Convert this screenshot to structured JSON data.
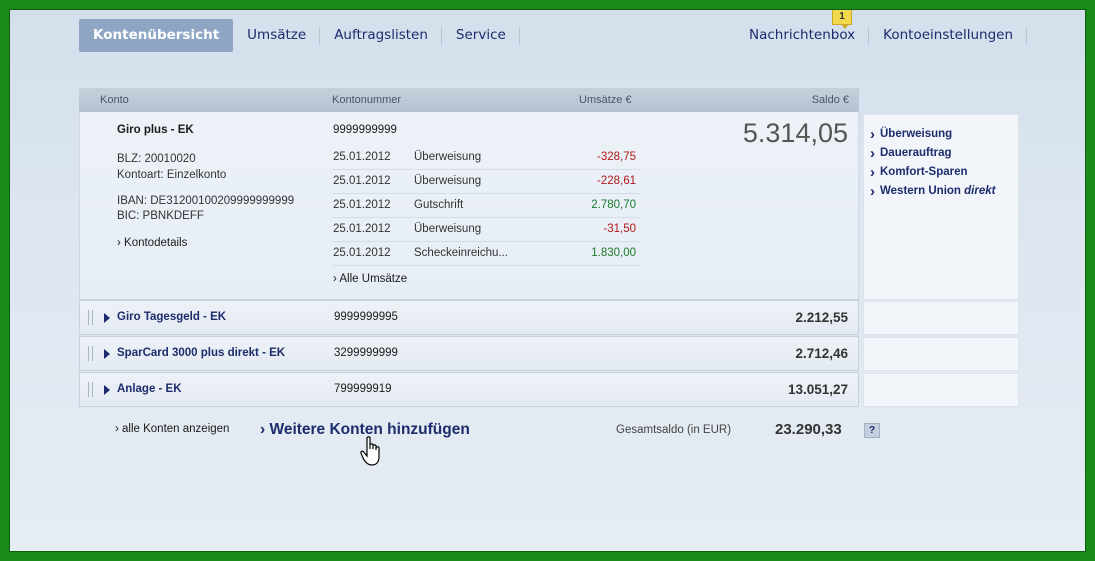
{
  "nav": {
    "left": [
      "Kontenübersicht",
      "Umsätze",
      "Auftragslisten",
      "Service"
    ],
    "right": [
      "Nachrichtenbox",
      "Kontoeinstellungen"
    ],
    "badge": "1"
  },
  "table": {
    "headers": {
      "konto": "Konto",
      "kontonummer": "Kontonummer",
      "umsaetze": "Umsätze €",
      "saldo": "Saldo €"
    }
  },
  "expanded": {
    "name": "Giro plus - EK",
    "number": "9999999999",
    "balance": "5.314,05",
    "blz": "BLZ: 20010020",
    "kontoart": "Kontoart: Einzelkonto",
    "iban": "IBAN: DE31200100209999999999",
    "bic": "BIC: PBNKDEFF",
    "details_link": "› Kontodetails",
    "all_tx_link": "› Alle Umsätze",
    "transactions": [
      {
        "date": "25.01.2012",
        "type": "Überweisung",
        "amount": "-328,75",
        "sign": "neg"
      },
      {
        "date": "25.01.2012",
        "type": "Überweisung",
        "amount": "-228,61",
        "sign": "neg"
      },
      {
        "date": "25.01.2012",
        "type": "Gutschrift",
        "amount": "2.780,70",
        "sign": "pos"
      },
      {
        "date": "25.01.2012",
        "type": "Überweisung",
        "amount": "-31,50",
        "sign": "neg"
      },
      {
        "date": "25.01.2012",
        "type": "Scheckeinreichu...",
        "amount": "1.830,00",
        "sign": "pos"
      }
    ]
  },
  "actions": {
    "a1": "Überweisung",
    "a2": "Dauerauftrag",
    "a3": "Komfort-Sparen",
    "a4": "Western Union",
    "a4_italic": "direkt"
  },
  "accounts": [
    {
      "name": "Giro Tagesgeld - EK",
      "number": "9999999995",
      "balance": "2.212,55"
    },
    {
      "name": "SparCard 3000 plus direkt - EK",
      "number": "3299999999",
      "balance": "2.712,46"
    },
    {
      "name": "Anlage - EK",
      "number": "799999919",
      "balance": "13.051,27"
    }
  ],
  "footer": {
    "show_all": "› alle Konten anzeigen",
    "add_accounts": "› Weitere Konten hinzufügen",
    "total_label": "Gesamtsaldo (in EUR)",
    "total_value": "23.290,33",
    "help": "?"
  },
  "colors": {
    "frame": "#1a8a1a",
    "navy": "#1c2c6c",
    "negative": "#b01818",
    "positive": "#1c7a2a"
  }
}
